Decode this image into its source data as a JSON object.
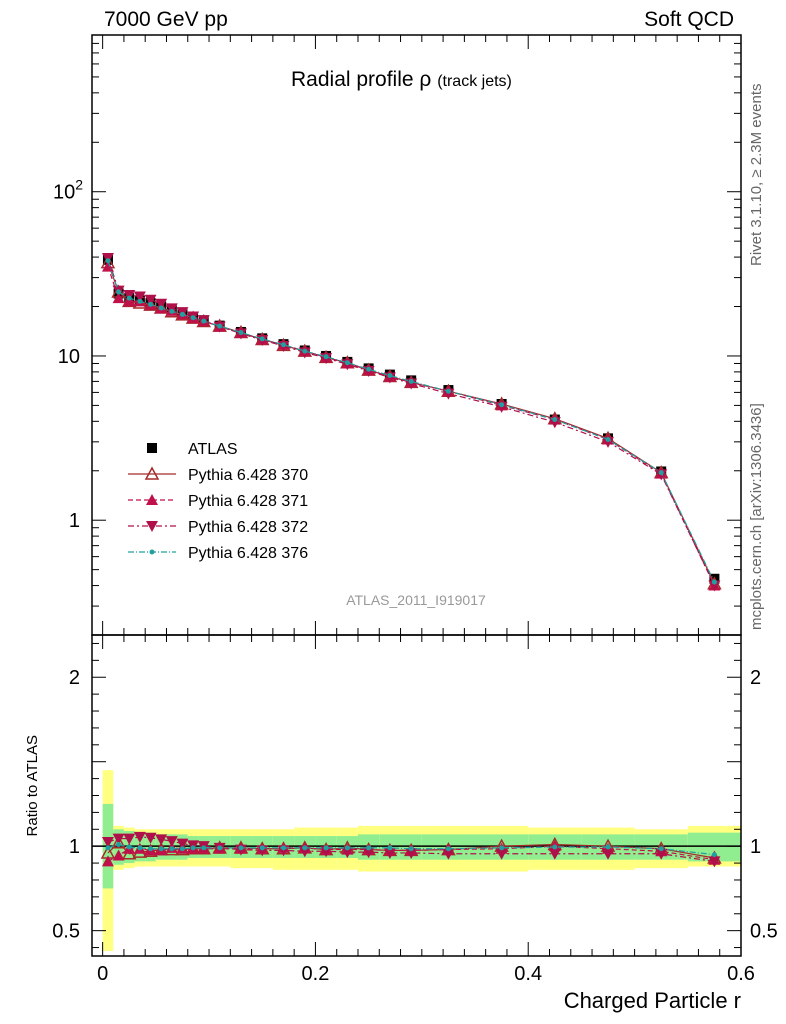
{
  "header": {
    "left": "7000 GeV pp",
    "right": "Soft QCD"
  },
  "side_labels": {
    "rivet": "Rivet 3.1.10, ≥ 2.3M events",
    "mcplots": "mcplots.cern.ch [arXiv:1306.3436]"
  },
  "chart_data": {
    "type": "scatter",
    "title": "Radial profile",
    "title_symbol": "ρ",
    "title_sub": "(track jets)",
    "analysis_id": "ATLAS_2011_I919017",
    "xlabel": "Charged Particle r",
    "ylabel_ratio": "Ratio to ATLAS",
    "xlim": [
      -0.01,
      0.6
    ],
    "ylim_main": [
      0.2,
      900
    ],
    "ylim_ratio": [
      0.35,
      2.25
    ],
    "y_scale_main": "log",
    "x_ticks": [
      "0",
      "0.2",
      "0.4",
      "0.6"
    ],
    "y_ticks_main": [
      "1",
      "10",
      "10^2"
    ],
    "y_ticks_ratio": [
      "0.5",
      "1",
      "2"
    ],
    "legend_position": "middle-left",
    "x": [
      0.005,
      0.015,
      0.025,
      0.035,
      0.045,
      0.055,
      0.065,
      0.075,
      0.085,
      0.095,
      0.11,
      0.13,
      0.15,
      0.17,
      0.19,
      0.21,
      0.23,
      0.25,
      0.27,
      0.29,
      0.325,
      0.375,
      0.425,
      0.475,
      0.525,
      0.575
    ],
    "series": [
      {
        "name": "ATLAS",
        "color": "#000000",
        "values": [
          38.5,
          24.0,
          22.5,
          21.8,
          21.0,
          20.0,
          19.0,
          18.2,
          17.3,
          16.5,
          15.3,
          14.0,
          12.8,
          11.8,
          10.8,
          10.0,
          9.2,
          8.4,
          7.7,
          7.1,
          6.2,
          5.1,
          4.1,
          3.15,
          1.98,
          0.44
        ],
        "ratio": [
          1,
          1,
          1,
          1,
          1,
          1,
          1,
          1,
          1,
          1,
          1,
          1,
          1,
          1,
          1,
          1,
          1,
          1,
          1,
          1,
          1,
          1,
          1,
          1,
          1,
          1
        ]
      },
      {
        "name": "Pythia 6.428 370",
        "color": "#a52a2a",
        "values": [
          37.0,
          24.5,
          21.5,
          21.0,
          20.4,
          19.6,
          18.6,
          17.8,
          17.0,
          16.2,
          15.2,
          13.9,
          12.6,
          11.6,
          10.7,
          9.8,
          9.1,
          8.2,
          7.5,
          6.9,
          6.1,
          5.1,
          4.15,
          3.15,
          1.95,
          0.41
        ],
        "ratio": [
          0.96,
          1.02,
          0.955,
          0.965,
          0.97,
          0.98,
          0.98,
          0.98,
          0.985,
          0.985,
          0.99,
          0.99,
          0.985,
          0.985,
          0.99,
          0.98,
          0.99,
          0.98,
          0.975,
          0.975,
          0.98,
          1.0,
          1.01,
          1.0,
          0.985,
          0.93
        ]
      },
      {
        "name": "Pythia 6.428 371",
        "color": "#c0104a",
        "values": [
          35.0,
          22.5,
          21.5,
          21.5,
          20.5,
          19.5,
          18.8,
          17.9,
          17.0,
          16.3,
          15.1,
          13.8,
          12.6,
          11.7,
          10.7,
          9.8,
          9.0,
          8.2,
          7.5,
          6.9,
          6.1,
          5.0,
          4.1,
          3.1,
          1.92,
          0.4
        ],
        "ratio": [
          0.91,
          0.945,
          0.985,
          0.985,
          0.975,
          0.975,
          0.99,
          0.985,
          0.985,
          0.985,
          0.985,
          0.985,
          0.985,
          0.99,
          0.99,
          0.98,
          0.98,
          0.98,
          0.975,
          0.975,
          0.98,
          0.985,
          1.0,
          0.985,
          0.97,
          0.92
        ]
      },
      {
        "name": "Pythia 6.428 372",
        "color": "#b0104a",
        "values": [
          39.5,
          25.0,
          23.5,
          23.0,
          22.0,
          20.8,
          19.5,
          18.5,
          17.4,
          16.5,
          15.1,
          13.7,
          12.5,
          11.5,
          10.5,
          9.7,
          8.9,
          8.1,
          7.4,
          6.8,
          5.9,
          4.9,
          3.95,
          3.0,
          1.9,
          0.4
        ],
        "ratio": [
          1.025,
          1.045,
          1.045,
          1.055,
          1.05,
          1.04,
          1.03,
          1.015,
          1.005,
          1.0,
          0.99,
          0.98,
          0.975,
          0.975,
          0.97,
          0.97,
          0.965,
          0.965,
          0.96,
          0.96,
          0.955,
          0.955,
          0.955,
          0.955,
          0.955,
          0.91
        ]
      },
      {
        "name": "Pythia 6.428 376",
        "color": "#20a0a0",
        "values": [
          38.0,
          24.5,
          22.5,
          21.5,
          20.6,
          19.6,
          18.7,
          17.9,
          17.1,
          16.3,
          15.2,
          13.9,
          12.7,
          11.7,
          10.7,
          9.9,
          9.1,
          8.3,
          7.6,
          7.0,
          6.1,
          5.05,
          4.1,
          3.1,
          1.95,
          0.42
        ],
        "ratio": [
          0.99,
          1.01,
          0.995,
          0.99,
          0.985,
          0.985,
          0.985,
          0.985,
          0.99,
          0.99,
          0.99,
          0.99,
          0.99,
          0.99,
          0.99,
          0.99,
          0.99,
          0.99,
          0.99,
          0.985,
          0.985,
          0.99,
          0.995,
          0.995,
          0.985,
          0.95
        ]
      }
    ],
    "bands": {
      "x_edges": [
        0.0,
        0.01,
        0.02,
        0.03,
        0.04,
        0.05,
        0.06,
        0.07,
        0.08,
        0.09,
        0.1,
        0.12,
        0.14,
        0.16,
        0.18,
        0.2,
        0.22,
        0.24,
        0.26,
        0.28,
        0.3,
        0.35,
        0.4,
        0.45,
        0.5,
        0.55,
        0.6
      ],
      "stat_lo": [
        0.75,
        0.89,
        0.9,
        0.91,
        0.91,
        0.92,
        0.92,
        0.92,
        0.93,
        0.93,
        0.93,
        0.93,
        0.93,
        0.93,
        0.93,
        0.93,
        0.93,
        0.92,
        0.92,
        0.92,
        0.92,
        0.92,
        0.92,
        0.92,
        0.92,
        0.91
      ],
      "stat_hi": [
        1.25,
        1.1,
        1.09,
        1.08,
        1.08,
        1.07,
        1.07,
        1.07,
        1.06,
        1.06,
        1.06,
        1.06,
        1.06,
        1.06,
        1.06,
        1.06,
        1.06,
        1.07,
        1.07,
        1.07,
        1.07,
        1.07,
        1.07,
        1.07,
        1.07,
        1.08
      ],
      "total_lo": [
        0.38,
        0.86,
        0.87,
        0.88,
        0.88,
        0.88,
        0.88,
        0.88,
        0.88,
        0.88,
        0.88,
        0.87,
        0.87,
        0.86,
        0.86,
        0.86,
        0.86,
        0.85,
        0.85,
        0.85,
        0.85,
        0.85,
        0.86,
        0.86,
        0.87,
        0.88
      ],
      "total_hi": [
        1.45,
        1.12,
        1.11,
        1.1,
        1.1,
        1.1,
        1.1,
        1.1,
        1.1,
        1.1,
        1.1,
        1.1,
        1.1,
        1.1,
        1.11,
        1.11,
        1.11,
        1.12,
        1.12,
        1.12,
        1.12,
        1.12,
        1.11,
        1.11,
        1.1,
        1.12
      ]
    }
  }
}
